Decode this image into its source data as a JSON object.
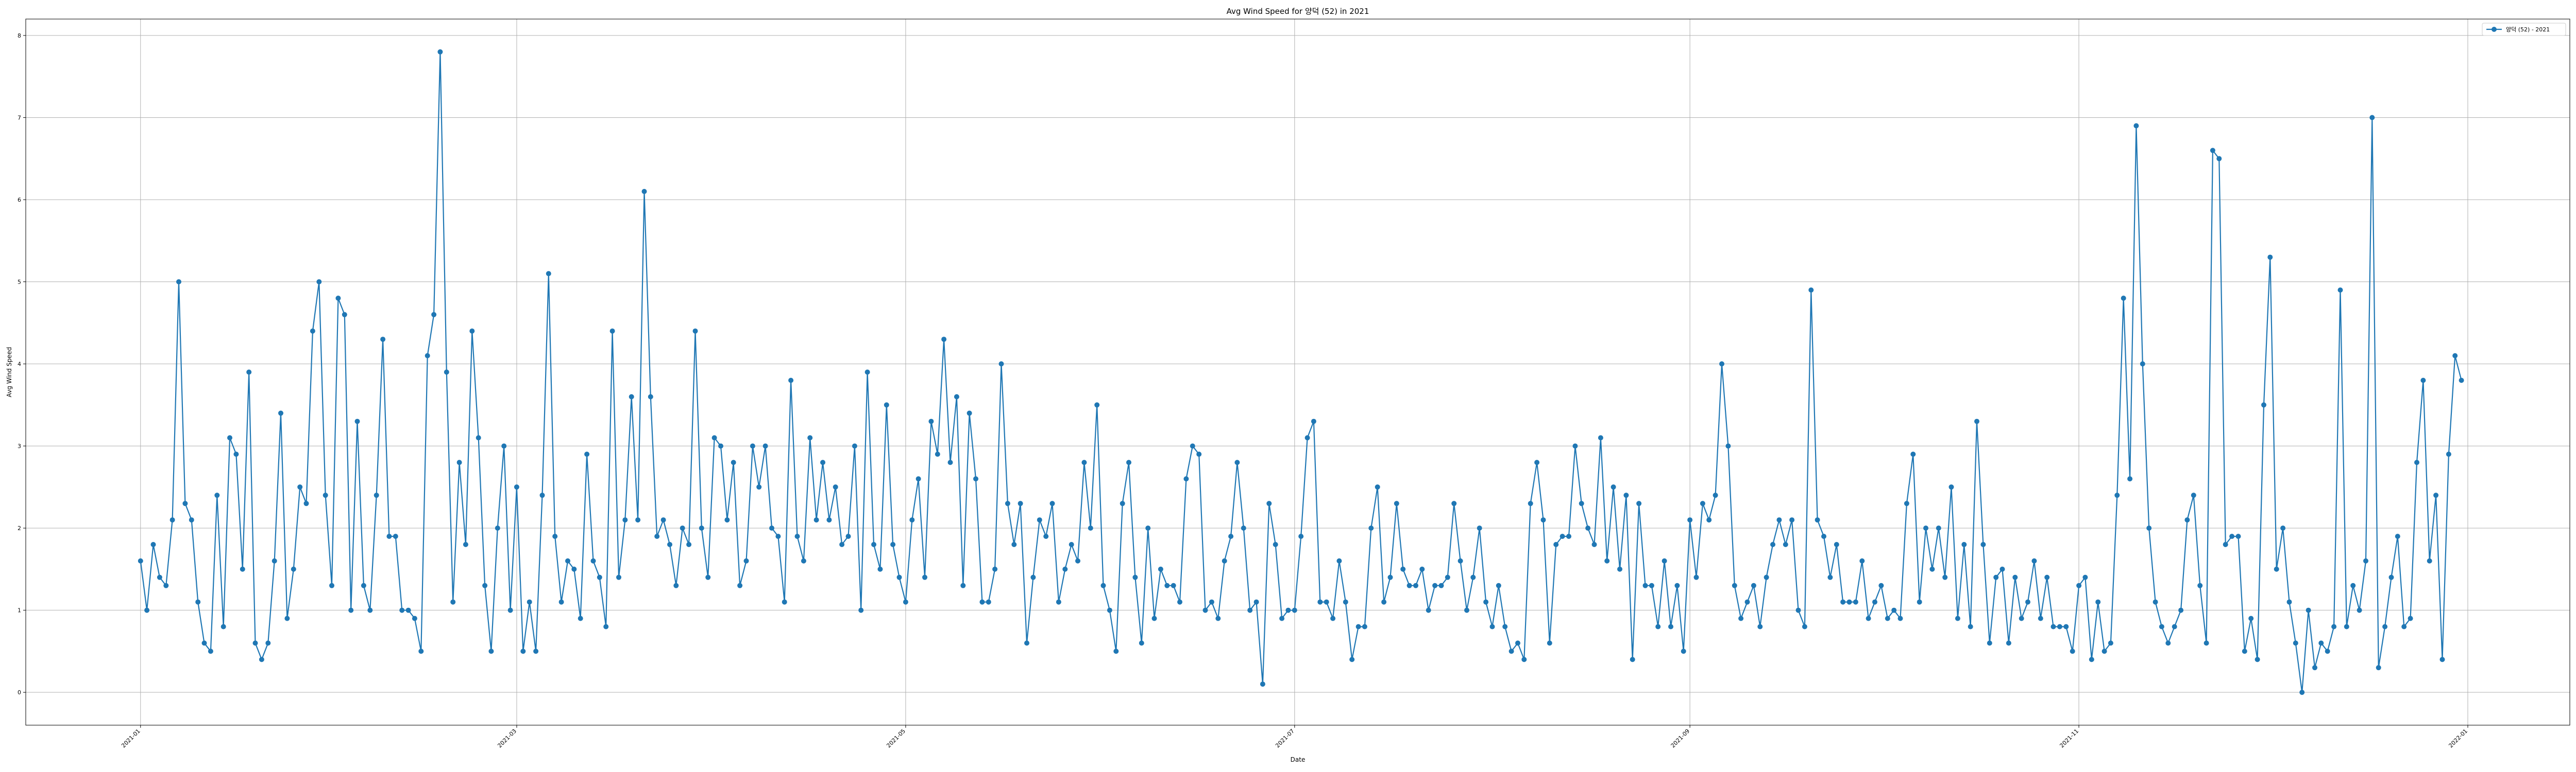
{
  "chart_data": {
    "type": "line",
    "title": "Avg Wind Speed for 양덕 (52) in 2021",
    "xlabel": "Date",
    "ylabel": "Avg Wind Speed",
    "x_start": "2021-01-01",
    "xlim": [
      "2020-12-14",
      "2022-01-17"
    ],
    "ylim": [
      -0.4,
      8.2
    ],
    "y_ticks": [
      0,
      1,
      2,
      3,
      4,
      5,
      6,
      7,
      8
    ],
    "x_ticks": [
      {
        "label": "2021-01",
        "date": "2021-01-01"
      },
      {
        "label": "2021-03",
        "date": "2021-03-01"
      },
      {
        "label": "2021-05",
        "date": "2021-05-01"
      },
      {
        "label": "2021-07",
        "date": "2021-07-01"
      },
      {
        "label": "2021-09",
        "date": "2021-09-01"
      },
      {
        "label": "2021-11",
        "date": "2021-11-01"
      },
      {
        "label": "2022-01",
        "date": "2022-01-01"
      }
    ],
    "grid": true,
    "legend": "top-right",
    "line_color": "#1f77b4",
    "series": [
      {
        "name": "양덕 (52) - 2021",
        "values": [
          1.6,
          1.0,
          1.8,
          1.4,
          1.3,
          2.1,
          5.0,
          2.3,
          2.1,
          1.1,
          0.6,
          0.5,
          2.4,
          0.8,
          3.1,
          2.9,
          1.5,
          3.9,
          0.6,
          0.4,
          0.6,
          1.6,
          3.4,
          0.9,
          1.5,
          2.5,
          2.3,
          4.4,
          5.0,
          2.4,
          1.3,
          4.8,
          4.6,
          1.0,
          3.3,
          1.3,
          1.0,
          2.4,
          4.3,
          1.9,
          1.9,
          1.0,
          1.0,
          0.9,
          0.5,
          4.1,
          4.6,
          7.8,
          3.9,
          1.1,
          2.8,
          1.8,
          4.4,
          3.1,
          1.3,
          0.5,
          2.0,
          3.0,
          1.0,
          2.5,
          0.5,
          1.1,
          0.5,
          2.4,
          5.1,
          1.9,
          1.1,
          1.6,
          1.5,
          0.9,
          2.9,
          1.6,
          1.4,
          0.8,
          4.4,
          1.4,
          2.1,
          3.6,
          2.1,
          6.1,
          3.6,
          1.9,
          2.1,
          1.8,
          1.3,
          2.0,
          1.8,
          4.4,
          2.0,
          1.4,
          3.1,
          3.0,
          2.1,
          2.8,
          1.3,
          1.6,
          3.0,
          2.5,
          3.0,
          2.0,
          1.9,
          1.1,
          3.8,
          1.9,
          1.6,
          3.1,
          2.1,
          2.8,
          2.1,
          2.5,
          1.8,
          1.9,
          3.0,
          1.0,
          3.9,
          1.8,
          1.5,
          3.5,
          1.8,
          1.4,
          1.1,
          2.1,
          2.6,
          1.4,
          3.3,
          2.9,
          4.3,
          2.8,
          3.6,
          1.3,
          3.4,
          2.6,
          1.1,
          1.1,
          1.5,
          4.0,
          2.3,
          1.8,
          2.3,
          0.6,
          1.4,
          2.1,
          1.9,
          2.3,
          1.1,
          1.5,
          1.8,
          1.6,
          2.8,
          2.0,
          3.5,
          1.3,
          1.0,
          0.5,
          2.3,
          2.8,
          1.4,
          0.6,
          2.0,
          0.9,
          1.5,
          1.3,
          1.3,
          1.1,
          2.6,
          3.0,
          2.9,
          1.0,
          1.1,
          0.9,
          1.6,
          1.9,
          2.8,
          2.0,
          1.0,
          1.1,
          0.1,
          2.3,
          1.8,
          0.9,
          1.0,
          1.0,
          1.9,
          3.1,
          3.3,
          1.1,
          1.1,
          0.9,
          1.6,
          1.1,
          0.4,
          0.8,
          0.8,
          2.0,
          2.5,
          1.1,
          1.4,
          2.3,
          1.5,
          1.3,
          1.3,
          1.5,
          1.0,
          1.3,
          1.3,
          1.4,
          2.3,
          1.6,
          1.0,
          1.4,
          2.0,
          1.1,
          0.8,
          1.3,
          0.8,
          0.5,
          0.6,
          0.4,
          2.3,
          2.8,
          2.1,
          0.6,
          1.8,
          1.9,
          1.9,
          3.0,
          2.3,
          2.0,
          1.8,
          3.1,
          1.6,
          2.5,
          1.5,
          2.4,
          0.4,
          2.3,
          1.3,
          1.3,
          0.8,
          1.6,
          0.8,
          1.3,
          0.5,
          2.1,
          1.4,
          2.3,
          2.1,
          2.4,
          4.0,
          3.0,
          1.3,
          0.9,
          1.1,
          1.3,
          0.8,
          1.4,
          1.8,
          2.1,
          1.8,
          2.1,
          1.0,
          0.8,
          4.9,
          2.1,
          1.9,
          1.4,
          1.8,
          1.1,
          1.1,
          1.1,
          1.6,
          0.9,
          1.1,
          1.3,
          0.9,
          1.0,
          0.9,
          2.3,
          2.9,
          1.1,
          2.0,
          1.5,
          2.0,
          1.4,
          2.5,
          0.9,
          1.8,
          0.8,
          3.3,
          1.8,
          0.6,
          1.4,
          1.5,
          0.6,
          1.4,
          0.9,
          1.1,
          1.6,
          0.9,
          1.4,
          0.8,
          0.8,
          0.8,
          0.5,
          1.3,
          1.4,
          0.4,
          1.1,
          0.5,
          0.6,
          2.4,
          4.8,
          2.6,
          6.9,
          4.0,
          2.0,
          1.1,
          0.8,
          0.6,
          0.8,
          1.0,
          2.1,
          2.4,
          1.3,
          0.6,
          6.6,
          6.5,
          1.8,
          1.9,
          1.9,
          0.5,
          0.9,
          0.4,
          3.5,
          5.3,
          1.5,
          2.0,
          1.1,
          0.6,
          0.0,
          1.0,
          0.3,
          0.6,
          0.5,
          0.8,
          4.9,
          0.8,
          1.3,
          1.0,
          1.6,
          7.0,
          0.3,
          0.8,
          1.4,
          1.9,
          0.8,
          0.9,
          2.8,
          3.8,
          1.6,
          2.4,
          0.4,
          2.9,
          4.1,
          3.8
        ]
      }
    ]
  }
}
